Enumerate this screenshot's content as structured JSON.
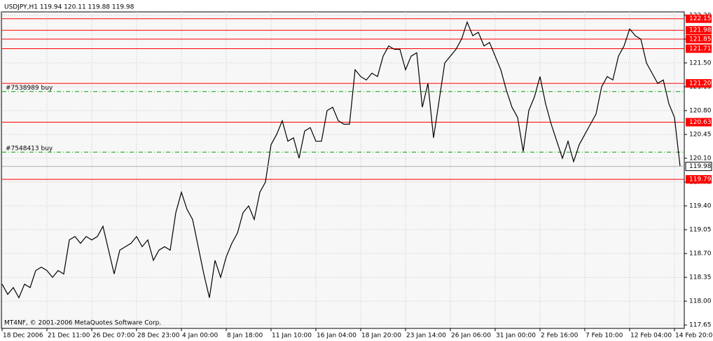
{
  "chart_data": {
    "type": "line",
    "title": "USDJPY,H1  119.94 120.11 119.88 119.98",
    "footer": "MT4NF, © 2001-2006 MetaQuotes Software Corp.",
    "categories": [
      "18 Dec 2006",
      null,
      null,
      null,
      null,
      null,
      null,
      null,
      "21 Dec 11:00",
      null,
      null,
      null,
      null,
      null,
      null,
      null,
      "26 Dec 07:00",
      null,
      null,
      null,
      null,
      null,
      null,
      null,
      "28 Dec 23:00",
      null,
      null,
      null,
      null,
      null,
      null,
      null,
      "4 Jan 00:00",
      null,
      null,
      null,
      null,
      null,
      null,
      null,
      "8 Jan 18:00",
      null,
      null,
      null,
      null,
      null,
      null,
      null,
      "11 Jan 10:00",
      null,
      null,
      null,
      null,
      null,
      null,
      null,
      "16 Jan 04:00",
      null,
      null,
      null,
      null,
      null,
      null,
      null,
      "18 Jan 20:00",
      null,
      null,
      null,
      null,
      null,
      null,
      null,
      "23 Jan 14:00",
      null,
      null,
      null,
      null,
      null,
      null,
      null,
      "26 Jan 06:00",
      null,
      null,
      null,
      null,
      null,
      null,
      null,
      "31 Jan 00:00",
      null,
      null,
      null,
      null,
      null,
      null,
      null,
      "2 Feb 16:00",
      null,
      null,
      null,
      null,
      null,
      null,
      null,
      "7 Feb 10:00",
      null,
      null,
      null,
      null,
      null,
      null,
      null,
      "12 Feb 04:00",
      null,
      null,
      null,
      null,
      null,
      null,
      null,
      "14 Feb 20:00",
      null
    ],
    "values": [
      118.25,
      118.1,
      118.2,
      118.05,
      118.25,
      118.2,
      118.45,
      118.5,
      118.45,
      118.35,
      118.45,
      118.4,
      118.9,
      118.95,
      118.85,
      118.95,
      118.9,
      118.95,
      119.1,
      118.75,
      118.4,
      118.75,
      118.8,
      118.85,
      118.95,
      118.8,
      118.9,
      118.6,
      118.75,
      118.8,
      118.75,
      119.3,
      119.6,
      119.35,
      119.2,
      118.8,
      118.4,
      118.05,
      118.6,
      118.35,
      118.65,
      118.85,
      119.0,
      119.3,
      119.4,
      119.2,
      119.6,
      119.75,
      120.3,
      120.45,
      120.65,
      120.35,
      120.4,
      120.1,
      120.5,
      120.55,
      120.35,
      120.35,
      120.8,
      120.85,
      120.65,
      120.6,
      120.6,
      121.4,
      121.3,
      121.25,
      121.35,
      121.3,
      121.6,
      121.75,
      121.7,
      121.7,
      121.4,
      121.6,
      121.65,
      120.85,
      121.2,
      120.4,
      120.95,
      121.5,
      121.6,
      121.7,
      121.85,
      122.1,
      121.9,
      121.95,
      121.75,
      121.8,
      121.6,
      121.4,
      121.1,
      120.85,
      120.7,
      120.2,
      120.8,
      121.0,
      121.3,
      120.9,
      120.6,
      120.35,
      120.1,
      120.35,
      120.05,
      120.3,
      120.45,
      120.6,
      120.75,
      121.15,
      121.3,
      121.25,
      121.6,
      121.75,
      122.0,
      121.9,
      121.85,
      121.5,
      121.35,
      121.2,
      121.25,
      120.9,
      120.7,
      119.98
    ],
    "color": "#000000",
    "ylim": [
      117.6,
      122.25
    ],
    "yticks": [
      117.65,
      {
        "value": 118,
        "label": "118.00"
      },
      118.35,
      {
        "value": 118.7,
        "label": "118.70"
      },
      119.05,
      {
        "value": 119.4,
        "label": "119.40"
      },
      119.75,
      {
        "value": 120.1,
        "label": "120.10"
      },
      120.45,
      {
        "value": 120.8,
        "label": "120.80"
      },
      121.15,
      {
        "value": 121.5,
        "label": "121.50"
      },
      121.85,
      {
        "value": 122.2,
        "label": "122.20"
      }
    ],
    "grid": true,
    "levels": [
      {
        "value": 122.15,
        "label": "122.15"
      },
      {
        "value": 121.98,
        "label": "121.98"
      },
      {
        "value": 121.85,
        "label": "121.85"
      },
      {
        "value": 121.71,
        "label": "121.71"
      },
      {
        "value": 121.2,
        "label": "121.20"
      },
      {
        "value": 120.63,
        "label": "120.63"
      },
      {
        "value": 119.79,
        "label": "119.79"
      }
    ],
    "level_color": "#ff0000",
    "current_price": {
      "value": 119.98,
      "label": "119.98"
    },
    "orders": [
      {
        "name": "#7538989 buy",
        "value": 121.08
      },
      {
        "name": "#7548413 buy",
        "value": 120.19
      }
    ],
    "order_color": "#00a000"
  }
}
